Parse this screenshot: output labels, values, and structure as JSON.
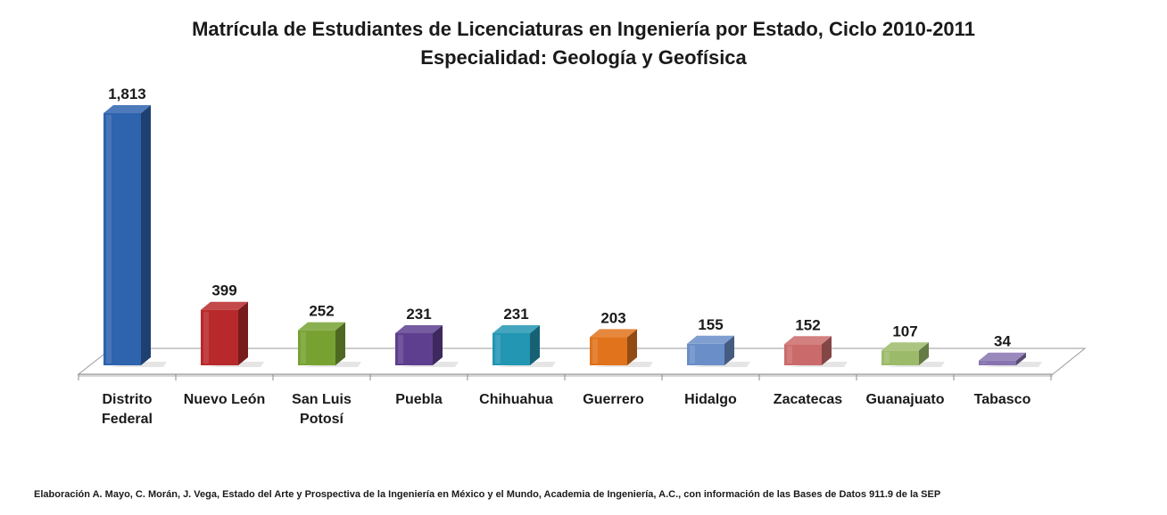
{
  "chart_data": {
    "type": "bar",
    "title": "Matrícula de Estudiantes de Licenciaturas en Ingeniería por Estado, Ciclo 2010-2011",
    "subtitle": "Especialidad: Geología y Geofísica",
    "categories": [
      "Distrito Federal",
      "Nuevo León",
      "San Luis Potosí",
      "Puebla",
      "Chihuahua",
      "Guerrero",
      "Hidalgo",
      "Zacatecas",
      "Guanajuato",
      "Tabasco"
    ],
    "category_lines": [
      [
        "Distrito",
        "Federal"
      ],
      [
        "Nuevo León"
      ],
      [
        "San Luis",
        "Potosí"
      ],
      [
        "Puebla"
      ],
      [
        "Chihuahua"
      ],
      [
        "Guerrero"
      ],
      [
        "Hidalgo"
      ],
      [
        "Zacatecas"
      ],
      [
        "Guanajuato"
      ],
      [
        "Tabasco"
      ]
    ],
    "values": [
      1813,
      399,
      252,
      231,
      231,
      203,
      155,
      152,
      107,
      34
    ],
    "value_labels": [
      "1,813",
      "399",
      "252",
      "231",
      "231",
      "203",
      "155",
      "152",
      "107",
      "34"
    ],
    "colors": [
      "#2E63AE",
      "#B8292B",
      "#77A232",
      "#5E3F8F",
      "#2296B3",
      "#E0731B",
      "#6A8EC8",
      "#CB6A6A",
      "#9CBB6A",
      "#8774B0"
    ],
    "xlabel": "",
    "ylabel": "",
    "ylim": [
      0,
      1813
    ],
    "grid": false,
    "legend": "none"
  },
  "footer": {
    "source": "Elaboración A. Mayo, C. Morán, J. Vega, Estado del Arte y Prospectiva de la Ingeniería en México y el Mundo, Academia de Ingeniería, A.C., con información de las Bases de Datos  911.9  de la SEP"
  }
}
